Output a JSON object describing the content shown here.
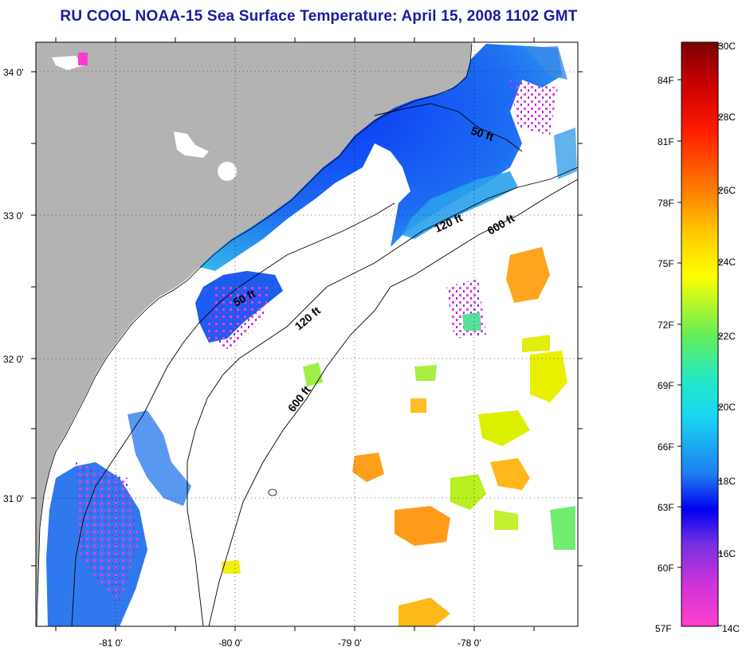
{
  "title": "RU COOL  NOAA-15  Sea Surface Temperature:  April 15, 2008 1102 GMT",
  "map": {
    "lat_labels": [
      "34 0'",
      "33 0'",
      "32 0'",
      "31 0'"
    ],
    "lon_labels": [
      "-81 0'",
      "-80 0'",
      "-79 0'",
      "-78 0'"
    ],
    "contour_labels": {
      "c50a": "50 ft",
      "c50b": "50 ft",
      "c120a": "120 ft",
      "c120b": "120 ft",
      "c600a": "600 ft",
      "c600b": "600 ft"
    },
    "colors": {
      "land": "#b3b3b3",
      "cloud": "#ffffff",
      "cold": "#1e5cf0",
      "mid": "#2fb8e6",
      "warm": "#ff9a1a",
      "yellow": "#e8f000",
      "magenta": "#ff3ccf"
    }
  },
  "colorbar": {
    "celsius": [
      "30C",
      "28C",
      "26C",
      "24C",
      "22C",
      "20C",
      "18C",
      "16C",
      "14C"
    ],
    "fahrenheit": [
      "84F",
      "81F",
      "78F",
      "75F",
      "72F",
      "69F",
      "66F",
      "63F",
      "60F",
      "57F"
    ]
  }
}
